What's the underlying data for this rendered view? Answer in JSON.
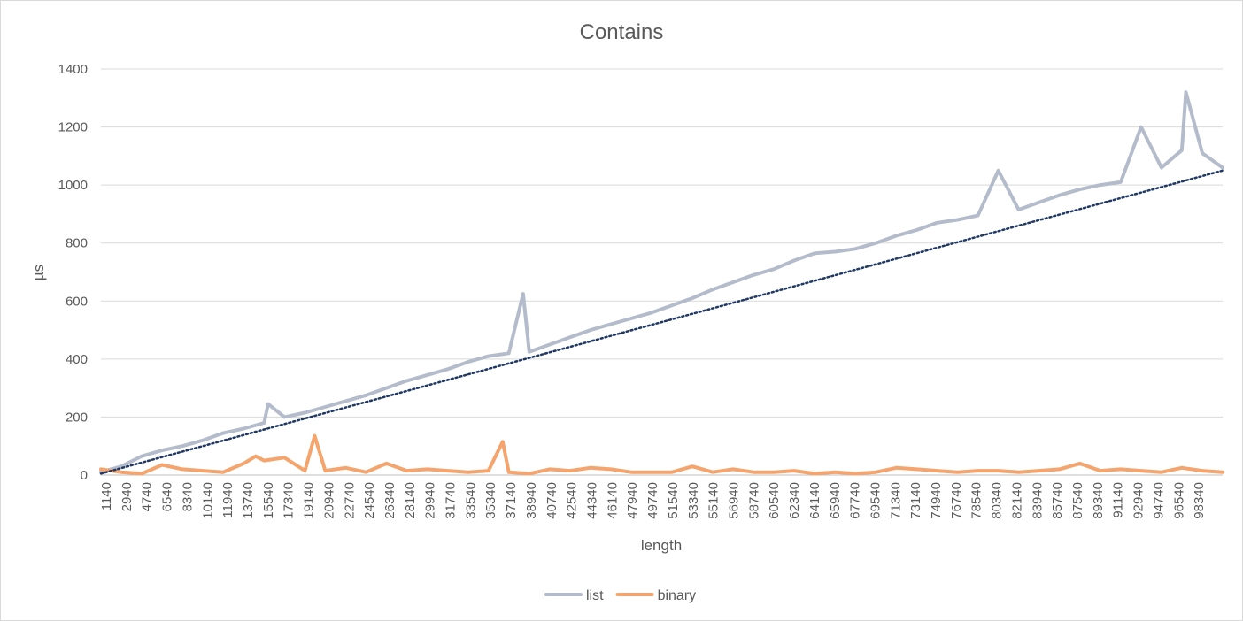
{
  "chart_data": {
    "type": "line",
    "title": "Contains",
    "xlabel": "length",
    "ylabel": "µs",
    "ylim": [
      0,
      1400
    ],
    "y_ticks": [
      0,
      200,
      400,
      600,
      800,
      1000,
      1200,
      1400
    ],
    "x_range": [
      1140,
      100140
    ],
    "x_tick_labels": [
      "1140",
      "2940",
      "4740",
      "6540",
      "8340",
      "10140",
      "11940",
      "13740",
      "15540",
      "17340",
      "19140",
      "20940",
      "22740",
      "24540",
      "26340",
      "28140",
      "29940",
      "31740",
      "33540",
      "35340",
      "37140",
      "38940",
      "40740",
      "42540",
      "44340",
      "46140",
      "47940",
      "49740",
      "51540",
      "53340",
      "55140",
      "56940",
      "58740",
      "60540",
      "62340",
      "64140",
      "65940",
      "67740",
      "69540",
      "71340",
      "73140",
      "74940",
      "76740",
      "78540",
      "80340",
      "82140",
      "83940",
      "85740",
      "87540",
      "89340",
      "91140",
      "92940",
      "94740",
      "96540",
      "98340"
    ],
    "grid": true,
    "legend_position": "bottom",
    "trendline": {
      "series": "list",
      "style": "dotted",
      "color": "#203864",
      "from": [
        1140,
        5
      ],
      "to": [
        100140,
        1050
      ]
    },
    "series": [
      {
        "name": "list",
        "color": "#b4bccc",
        "x": [
          1140,
          2940,
          4740,
          6540,
          8340,
          10140,
          11940,
          13740,
          15540,
          15900,
          17340,
          19140,
          20940,
          22740,
          24540,
          26340,
          28140,
          29940,
          31740,
          33540,
          35340,
          37140,
          38400,
          38940,
          40740,
          42540,
          44340,
          46140,
          47940,
          49740,
          51540,
          53340,
          55140,
          56940,
          58740,
          60540,
          62340,
          64140,
          65940,
          67740,
          69540,
          71340,
          73140,
          74940,
          76740,
          78540,
          80340,
          82140,
          83940,
          85740,
          87540,
          89340,
          91140,
          92940,
          94740,
          96540,
          96900,
          98340,
          100140
        ],
        "values": [
          10,
          30,
          65,
          85,
          100,
          120,
          145,
          160,
          180,
          245,
          200,
          215,
          235,
          255,
          275,
          300,
          325,
          345,
          365,
          390,
          410,
          420,
          625,
          425,
          450,
          475,
          500,
          520,
          540,
          560,
          585,
          610,
          640,
          665,
          690,
          710,
          740,
          765,
          770,
          780,
          800,
          825,
          845,
          870,
          880,
          895,
          1050,
          915,
          940,
          965,
          985,
          1000,
          1010,
          1200,
          1060,
          1120,
          1320,
          1110,
          1060
        ]
      },
      {
        "name": "binary",
        "color": "#f4a46c",
        "x": [
          1140,
          2940,
          4740,
          6540,
          8340,
          10140,
          11940,
          13740,
          14800,
          15540,
          17340,
          19140,
          20000,
          20940,
          22740,
          24540,
          26340,
          28140,
          29940,
          31740,
          33540,
          35340,
          36600,
          37140,
          38940,
          40740,
          42540,
          44340,
          46140,
          47940,
          49740,
          51540,
          53340,
          55140,
          56940,
          58740,
          60540,
          62340,
          64140,
          65940,
          67740,
          69540,
          71340,
          73140,
          74940,
          76740,
          78540,
          80340,
          82140,
          83940,
          85740,
          87540,
          89340,
          91140,
          92940,
          94740,
          96540,
          98340,
          100140
        ],
        "values": [
          20,
          10,
          5,
          35,
          20,
          15,
          10,
          40,
          65,
          50,
          60,
          15,
          135,
          15,
          25,
          10,
          40,
          15,
          20,
          15,
          10,
          15,
          115,
          10,
          5,
          20,
          15,
          25,
          20,
          10,
          10,
          10,
          30,
          10,
          20,
          10,
          10,
          15,
          5,
          10,
          5,
          10,
          25,
          20,
          15,
          10,
          15,
          15,
          10,
          15,
          20,
          40,
          15,
          20,
          15,
          10,
          25,
          15,
          10
        ]
      }
    ]
  }
}
